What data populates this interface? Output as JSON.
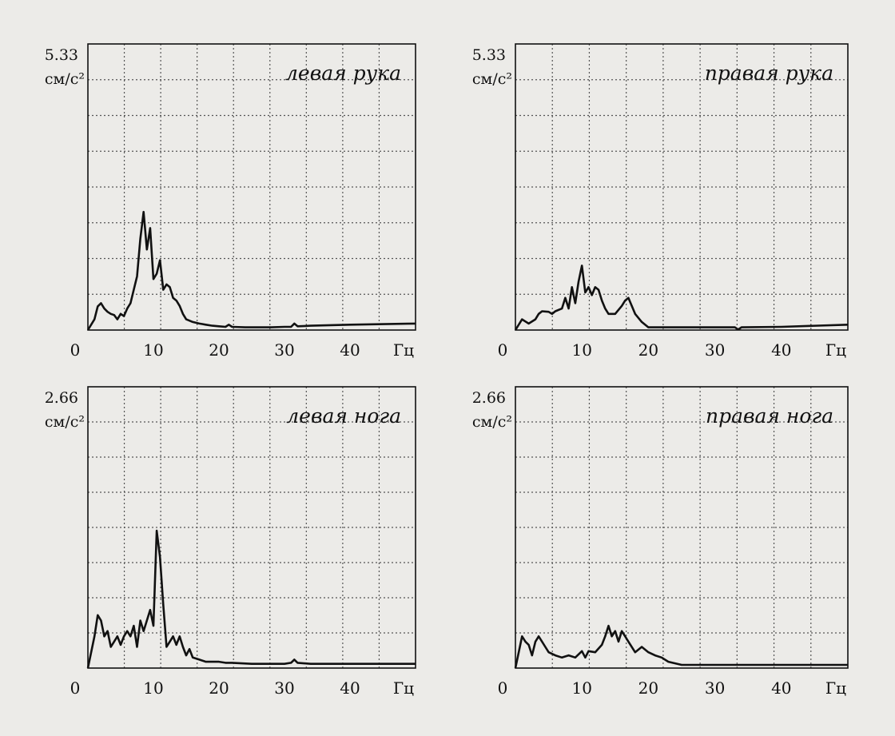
{
  "chart_data": [
    {
      "type": "line",
      "title": "левая рука",
      "y_max_label": "5.33",
      "y_unit": "см/с²",
      "x_unit": "Гц",
      "x_ticks": [
        "0",
        "10",
        "20",
        "30",
        "40"
      ],
      "xlim": [
        0,
        50
      ],
      "ylim": [
        0,
        5.33
      ],
      "grid": true,
      "x": [
        0,
        1,
        1.5,
        2,
        2.5,
        3,
        3.5,
        4,
        4.5,
        5,
        5.5,
        6,
        6.5,
        7,
        7.5,
        8,
        8.5,
        9,
        9.5,
        10,
        10.5,
        11,
        11.5,
        12,
        12.5,
        13,
        13.5,
        14,
        14.5,
        15,
        16,
        17,
        18,
        19,
        20,
        21,
        21.5,
        22,
        24,
        26,
        28,
        30,
        31,
        31.5,
        32,
        34,
        40,
        50
      ],
      "y": [
        0.0,
        0.2,
        0.44,
        0.5,
        0.4,
        0.34,
        0.3,
        0.28,
        0.2,
        0.3,
        0.26,
        0.4,
        0.5,
        0.75,
        1.0,
        1.7,
        2.2,
        1.5,
        1.9,
        0.95,
        1.05,
        1.3,
        0.75,
        0.85,
        0.8,
        0.6,
        0.55,
        0.45,
        0.3,
        0.2,
        0.15,
        0.12,
        0.1,
        0.08,
        0.07,
        0.06,
        0.1,
        0.06,
        0.05,
        0.05,
        0.05,
        0.06,
        0.06,
        0.12,
        0.07,
        0.08,
        0.1,
        0.12
      ]
    },
    {
      "type": "line",
      "title": "правая рука",
      "y_max_label": "5.33",
      "y_unit": "см/с²",
      "x_unit": "Гц",
      "x_ticks": [
        "0",
        "10",
        "20",
        "30",
        "40"
      ],
      "xlim": [
        0,
        50
      ],
      "ylim": [
        0,
        5.33
      ],
      "grid": true,
      "x": [
        0,
        1,
        1.5,
        2,
        3,
        3.5,
        4,
        5,
        5.5,
        6,
        7,
        7.5,
        8,
        8.5,
        9,
        9.5,
        10,
        10.5,
        11,
        11.5,
        12,
        12.5,
        13,
        13.5,
        14,
        15,
        16,
        16.5,
        17,
        17.5,
        18,
        19,
        20,
        22,
        25,
        30,
        33,
        33.5,
        34,
        40,
        50
      ],
      "y": [
        0.0,
        0.2,
        0.16,
        0.12,
        0.2,
        0.3,
        0.35,
        0.34,
        0.3,
        0.35,
        0.4,
        0.6,
        0.4,
        0.8,
        0.5,
        0.9,
        1.2,
        0.7,
        0.8,
        0.65,
        0.8,
        0.75,
        0.55,
        0.4,
        0.3,
        0.3,
        0.45,
        0.55,
        0.6,
        0.45,
        0.3,
        0.15,
        0.05,
        0.05,
        0.05,
        0.05,
        0.05,
        0.01,
        0.05,
        0.06,
        0.1
      ]
    },
    {
      "type": "line",
      "title": "левая нога",
      "y_max_label": "2.66",
      "y_unit": "см/с²",
      "x_unit": "Гц",
      "x_ticks": [
        "0",
        "10",
        "20",
        "30",
        "40"
      ],
      "xlim": [
        0,
        50
      ],
      "ylim": [
        0,
        2.66
      ],
      "grid": true,
      "x": [
        0,
        1,
        1.5,
        2,
        2.5,
        3,
        3.5,
        4,
        4.5,
        5,
        5.5,
        6,
        6.5,
        7,
        7.5,
        8,
        8.5,
        9,
        9.5,
        10,
        10.5,
        11,
        11.5,
        12,
        12.5,
        13,
        13.5,
        14,
        14.5,
        15,
        15.5,
        16,
        17,
        18,
        20,
        21,
        22,
        25,
        28,
        30,
        31,
        31.5,
        32,
        34,
        40,
        50
      ],
      "y": [
        0.0,
        0.3,
        0.5,
        0.45,
        0.3,
        0.35,
        0.2,
        0.25,
        0.3,
        0.22,
        0.3,
        0.35,
        0.3,
        0.4,
        0.2,
        0.45,
        0.35,
        0.45,
        0.55,
        0.4,
        1.3,
        1.05,
        0.6,
        0.2,
        0.25,
        0.3,
        0.22,
        0.3,
        0.2,
        0.12,
        0.18,
        0.1,
        0.08,
        0.06,
        0.06,
        0.05,
        0.05,
        0.04,
        0.04,
        0.04,
        0.05,
        0.08,
        0.05,
        0.04,
        0.04,
        0.04
      ]
    },
    {
      "type": "line",
      "title": "правая нога",
      "y_max_label": "2.66",
      "y_unit": "см/с²",
      "x_unit": "Гц",
      "x_ticks": [
        "0",
        "10",
        "20",
        "30",
        "40"
      ],
      "xlim": [
        0,
        50
      ],
      "ylim": [
        0,
        2.66
      ],
      "grid": true,
      "x": [
        0,
        1,
        1.5,
        2,
        2.5,
        3,
        3.5,
        4,
        4.5,
        5,
        6,
        7,
        8,
        9,
        10,
        10.5,
        11,
        12,
        13,
        13.5,
        14,
        14.5,
        15,
        15.5,
        16,
        16.5,
        17,
        18,
        19,
        20,
        21,
        22,
        23,
        25,
        30,
        40,
        50
      ],
      "y": [
        0.0,
        0.3,
        0.25,
        0.22,
        0.12,
        0.25,
        0.3,
        0.25,
        0.2,
        0.15,
        0.12,
        0.1,
        0.12,
        0.1,
        0.16,
        0.1,
        0.16,
        0.15,
        0.22,
        0.3,
        0.4,
        0.3,
        0.35,
        0.25,
        0.35,
        0.3,
        0.25,
        0.15,
        0.2,
        0.15,
        0.12,
        0.1,
        0.06,
        0.03,
        0.03,
        0.03,
        0.03
      ]
    }
  ]
}
